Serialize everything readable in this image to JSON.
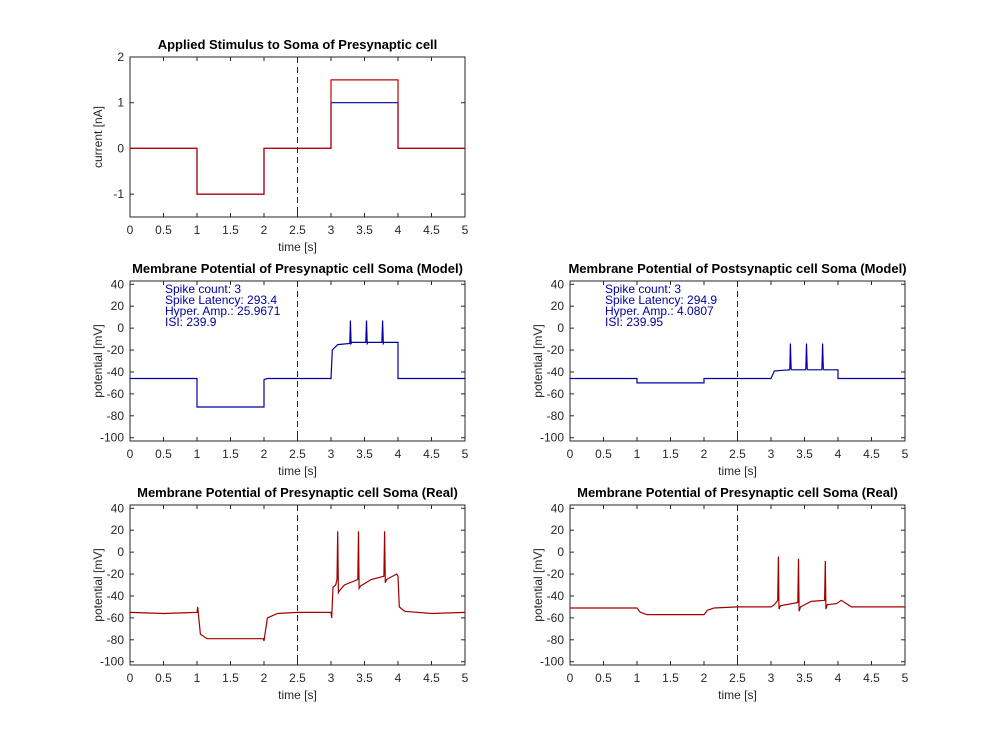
{
  "colors": {
    "model": "#0000a0",
    "real": "#a00000",
    "stim_low": "#0000a0",
    "stim_high": "#c00000",
    "marker": "#262626"
  },
  "marker_x": 2.5,
  "chart_data": [
    {
      "id": "stim",
      "type": "line",
      "title": "Applied Stimulus to Soma of Presynaptic cell",
      "xlabel": "time [s]",
      "ylabel": "current [nA]",
      "xlim": [
        0,
        5
      ],
      "ylim": [
        -1.5,
        2
      ],
      "xticks": [
        "0",
        "0.5",
        "1",
        "1.5",
        "2",
        "2.5",
        "3",
        "3.5",
        "4",
        "4.5",
        "5"
      ],
      "yticks": [
        "2",
        "1",
        "0",
        "-1"
      ],
      "ytick_values": [
        2,
        1,
        0,
        -1
      ],
      "annotations": [],
      "series": [
        {
          "color_key": "stim_low",
          "x": [
            0,
            1,
            1,
            2,
            2,
            3,
            3,
            4,
            4,
            5
          ],
          "y": [
            0,
            0,
            -1,
            -1,
            0,
            0,
            1,
            1,
            0,
            0
          ]
        },
        {
          "color_key": "stim_high",
          "x": [
            0,
            1,
            1,
            2,
            2,
            3,
            3,
            4,
            4,
            5
          ],
          "y": [
            0,
            0,
            -1,
            -1,
            0,
            0,
            1.5,
            1.5,
            0,
            0
          ]
        }
      ]
    },
    {
      "id": "pre_model",
      "type": "line",
      "title": "Membrane Potential of Presynaptic cell Soma (Model)",
      "xlabel": "time [s]",
      "ylabel": "potential [mV]",
      "xlim": [
        0,
        5
      ],
      "ylim": [
        -103,
        43
      ],
      "xticks": [
        "0",
        "0.5",
        "1",
        "1.5",
        "2",
        "2.5",
        "3",
        "3.5",
        "4",
        "4.5",
        "5"
      ],
      "yticks": [
        "40",
        "20",
        "0",
        "-20",
        "-40",
        "-60",
        "-80",
        "-100"
      ],
      "ytick_values": [
        40,
        20,
        0,
        -20,
        -40,
        -60,
        -80,
        -100
      ],
      "annotations": [
        "Spike count: 3",
        "Spike Latency: 293.4",
        "Hyper. Amp.: 25.9671",
        "ISI: 239.9"
      ],
      "series": [
        {
          "color_key": "model",
          "x": [
            0,
            1,
            1,
            2,
            2,
            2.05,
            3,
            3.02,
            3.1,
            3.28,
            3.29,
            3.3,
            3.31,
            3.52,
            3.53,
            3.54,
            3.55,
            3.76,
            3.77,
            3.78,
            3.79,
            4,
            4,
            5
          ],
          "y": [
            -46,
            -46,
            -72,
            -72,
            -47,
            -46,
            -46,
            -20,
            -15,
            -14,
            7,
            -14,
            -13,
            -13,
            7,
            -14,
            -13,
            -13,
            7,
            -14,
            -13,
            -13,
            -46,
            -46
          ]
        }
      ]
    },
    {
      "id": "post_model",
      "type": "line",
      "title": "Membrane Potential of Postsynaptic cell Soma (Model)",
      "xlabel": "time [s]",
      "ylabel": "potential [mV]",
      "xlim": [
        0,
        5
      ],
      "ylim": [
        -103,
        43
      ],
      "xticks": [
        "0",
        "0.5",
        "1",
        "1.5",
        "2",
        "2.5",
        "3",
        "3.5",
        "4",
        "4.5",
        "5"
      ],
      "yticks": [
        "40",
        "20",
        "0",
        "-20",
        "-40",
        "-60",
        "-80",
        "-100"
      ],
      "ytick_values": [
        40,
        20,
        0,
        -20,
        -40,
        -60,
        -80,
        -100
      ],
      "annotations": [
        "Spike count: 3",
        "Spike Latency: 294.9",
        "Hyper. Amp.: 4.0807",
        "ISI: 239.95"
      ],
      "series": [
        {
          "color_key": "model",
          "x": [
            0,
            1,
            1,
            2,
            2,
            3,
            3.05,
            3.28,
            3.29,
            3.3,
            3.31,
            3.52,
            3.53,
            3.54,
            3.55,
            3.76,
            3.77,
            3.78,
            3.79,
            4,
            4,
            5
          ],
          "y": [
            -46,
            -46,
            -50,
            -50,
            -46,
            -46,
            -39,
            -38,
            -14,
            -37,
            -38,
            -38,
            -14,
            -37,
            -38,
            -38,
            -14,
            -37,
            -38,
            -38,
            -46,
            -46
          ]
        }
      ]
    },
    {
      "id": "pre_real",
      "type": "line",
      "title": "Membrane Potential of Presynaptic cell Soma (Real)",
      "xlabel": "time [s]",
      "ylabel": "potential [mV]",
      "xlim": [
        0,
        5
      ],
      "ylim": [
        -103,
        43
      ],
      "xticks": [
        "0",
        "0.5",
        "1",
        "1.5",
        "2",
        "2.5",
        "3",
        "3.5",
        "4",
        "4.5",
        "5"
      ],
      "yticks": [
        "40",
        "20",
        "0",
        "-20",
        "-40",
        "-60",
        "-80",
        "-100"
      ],
      "ytick_values": [
        40,
        20,
        0,
        -20,
        -40,
        -60,
        -80,
        -100
      ],
      "annotations": [],
      "series": [
        {
          "color_key": "real",
          "x": [
            0,
            0.5,
            1,
            1.01,
            1.05,
            1.15,
            1.5,
            1.99,
            2,
            2.05,
            2.2,
            2.5,
            3,
            3.01,
            3.03,
            3.07,
            3.09,
            3.1,
            3.11,
            3.13,
            3.2,
            3.4,
            3.41,
            3.42,
            3.44,
            3.6,
            3.79,
            3.8,
            3.81,
            3.83,
            3.98,
            4,
            4.02,
            4.1,
            4.5,
            5
          ],
          "y": [
            -55,
            -56,
            -55,
            -50,
            -75,
            -79,
            -79,
            -79,
            -81,
            -60,
            -56,
            -55,
            -55,
            -60,
            -32,
            -30,
            -25,
            19,
            -37,
            -35,
            -30,
            -25,
            19,
            -33,
            -31,
            -25,
            -22,
            19,
            -28,
            -25,
            -20,
            -22,
            -50,
            -54,
            -56,
            -55
          ]
        }
      ]
    },
    {
      "id": "post_real",
      "type": "line",
      "title": "Membrane Potential of Presynaptic cell Soma (Real)",
      "xlabel": "time [s]",
      "ylabel": "potential [mV]",
      "xlim": [
        0,
        5
      ],
      "ylim": [
        -103,
        43
      ],
      "xticks": [
        "0",
        "0.5",
        "1",
        "1.5",
        "2",
        "2.5",
        "3",
        "3.5",
        "4",
        "4.5",
        "5"
      ],
      "yticks": [
        "40",
        "20",
        "0",
        "-20",
        "-40",
        "-60",
        "-80",
        "-100"
      ],
      "ytick_values": [
        40,
        20,
        0,
        -20,
        -40,
        -60,
        -80,
        -100
      ],
      "annotations": [],
      "series": [
        {
          "color_key": "real",
          "x": [
            0,
            1,
            1.05,
            1.15,
            1.5,
            2,
            2.05,
            2.15,
            2.5,
            3,
            3.05,
            3.1,
            3.11,
            3.12,
            3.14,
            3.4,
            3.41,
            3.42,
            3.44,
            3.6,
            3.8,
            3.81,
            3.82,
            3.84,
            3.98,
            4.05,
            4.2,
            4.5,
            5
          ],
          "y": [
            -51,
            -51,
            -55,
            -57,
            -57,
            -57,
            -53,
            -51,
            -50,
            -50,
            -48,
            -44,
            -4,
            -52,
            -49,
            -46,
            -6,
            -54,
            -50,
            -45,
            -44,
            -8,
            -52,
            -48,
            -47,
            -44,
            -50,
            -50,
            -50
          ]
        }
      ]
    }
  ]
}
